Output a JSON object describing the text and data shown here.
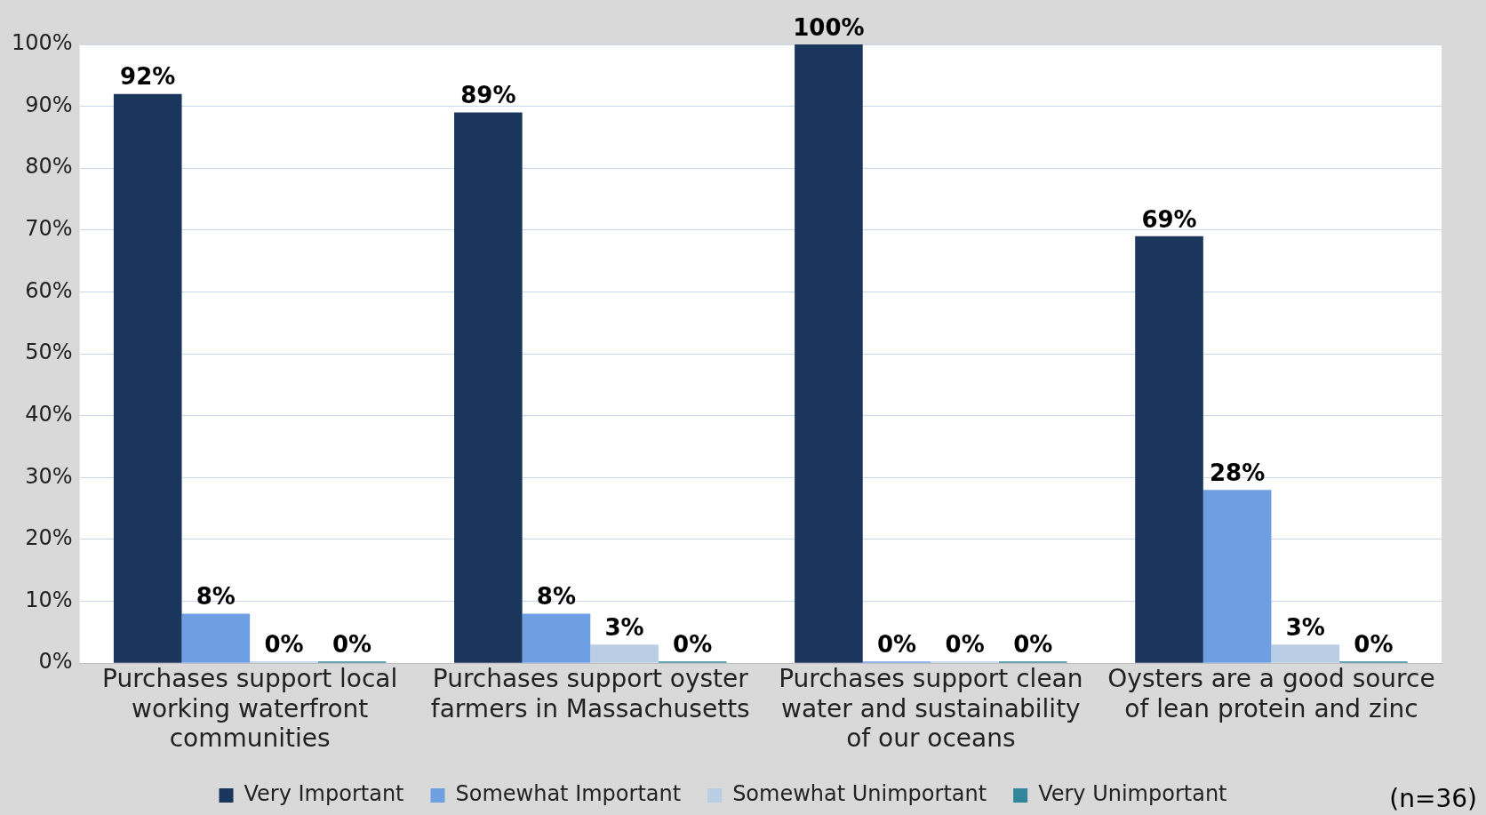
{
  "chart_data": {
    "type": "bar",
    "categories": [
      "Purchases support local working waterfront communities",
      "Purchases support oyster farmers in Massachusetts",
      "Purchases support clean water and sustainability of our oceans",
      "Oysters are a good source of lean protein and zinc"
    ],
    "series": [
      {
        "name": "Very Important",
        "color": "#1b365d",
        "values": [
          92,
          89,
          100,
          69
        ],
        "value_labels": [
          "92%",
          "89%",
          "100%",
          "69%"
        ]
      },
      {
        "name": "Somewhat Important",
        "color": "#6f9fe3",
        "values": [
          8,
          8,
          0,
          28
        ],
        "value_labels": [
          "8%",
          "8%",
          "0%",
          "28%"
        ]
      },
      {
        "name": "Somewhat Unimportant",
        "color": "#b9cde5",
        "values": [
          0,
          3,
          0,
          3
        ],
        "value_labels": [
          "0%",
          "3%",
          "0%",
          "3%"
        ]
      },
      {
        "name": "Very Unimportant",
        "color": "#31869b",
        "values": [
          0,
          0,
          0,
          0
        ],
        "value_labels": [
          "0%",
          "0%",
          "0%",
          "0%"
        ]
      }
    ],
    "ylim": [
      0,
      100
    ],
    "yticks": [
      {
        "value": 0,
        "label": "0%"
      },
      {
        "value": 10,
        "label": "10%"
      },
      {
        "value": 20,
        "label": "20%"
      },
      {
        "value": 30,
        "label": "30%"
      },
      {
        "value": 40,
        "label": "40%"
      },
      {
        "value": 50,
        "label": "50%"
      },
      {
        "value": 60,
        "label": "60%"
      },
      {
        "value": 70,
        "label": "70%"
      },
      {
        "value": 80,
        "label": "80%"
      },
      {
        "value": 90,
        "label": "90%"
      },
      {
        "value": 100,
        "label": "100%"
      }
    ],
    "grid": "y",
    "legend": "bottom",
    "annotations": [
      "(n=36)"
    ]
  }
}
